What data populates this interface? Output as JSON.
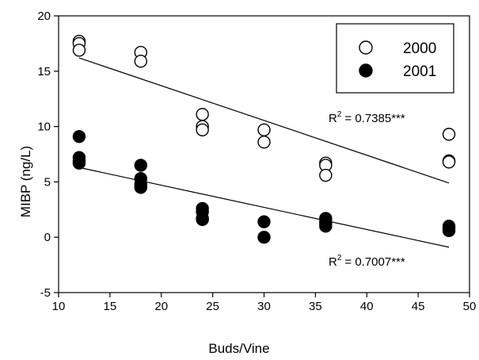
{
  "chart_data": {
    "type": "scatter",
    "title": "",
    "xlabel": "Buds/Vine",
    "ylabel": "MIBP (ng/L)",
    "xlim": [
      10,
      50
    ],
    "ylim": [
      -5,
      20
    ],
    "xticks": [
      "10",
      "15",
      "20",
      "25",
      "30",
      "35",
      "40",
      "45",
      "50"
    ],
    "yticks": [
      "-5",
      "0",
      "5",
      "10",
      "15",
      "20"
    ],
    "grid": false,
    "legend_position": "top-right",
    "series": [
      {
        "name": "2000",
        "marker": "open-circle",
        "color": "#000000",
        "points": [
          [
            12,
            17.7
          ],
          [
            12,
            17.5
          ],
          [
            12,
            16.9
          ],
          [
            18,
            16.7
          ],
          [
            18,
            15.9
          ],
          [
            24,
            11.1
          ],
          [
            24,
            10.0
          ],
          [
            24,
            9.7
          ],
          [
            30,
            9.7
          ],
          [
            30,
            8.6
          ],
          [
            36,
            6.7
          ],
          [
            36,
            6.5
          ],
          [
            36,
            5.6
          ],
          [
            48,
            9.3
          ],
          [
            48,
            6.9
          ],
          [
            48,
            6.8
          ]
        ],
        "fit": {
          "x": [
            12,
            48
          ],
          "y": [
            16.2,
            4.9
          ]
        },
        "r2_text": "= 0.7385***"
      },
      {
        "name": "2001",
        "marker": "filled-circle",
        "color": "#000000",
        "points": [
          [
            12,
            9.1
          ],
          [
            12,
            7.2
          ],
          [
            12,
            6.9
          ],
          [
            12,
            6.7
          ],
          [
            18,
            6.5
          ],
          [
            18,
            5.3
          ],
          [
            18,
            4.8
          ],
          [
            18,
            4.5
          ],
          [
            24,
            2.6
          ],
          [
            24,
            2.3
          ],
          [
            24,
            1.7
          ],
          [
            24,
            1.6
          ],
          [
            30,
            1.4
          ],
          [
            30,
            0.0
          ],
          [
            36,
            1.7
          ],
          [
            36,
            1.4
          ],
          [
            36,
            1.2
          ],
          [
            36,
            1.0
          ],
          [
            48,
            1.0
          ],
          [
            48,
            0.8
          ],
          [
            48,
            0.6
          ]
        ],
        "fit": {
          "x": [
            12,
            48
          ],
          "y": [
            6.3,
            -0.9
          ]
        },
        "r2_text": "= 0.7007***"
      }
    ],
    "r2_label": "R",
    "r2_sup": "2"
  }
}
